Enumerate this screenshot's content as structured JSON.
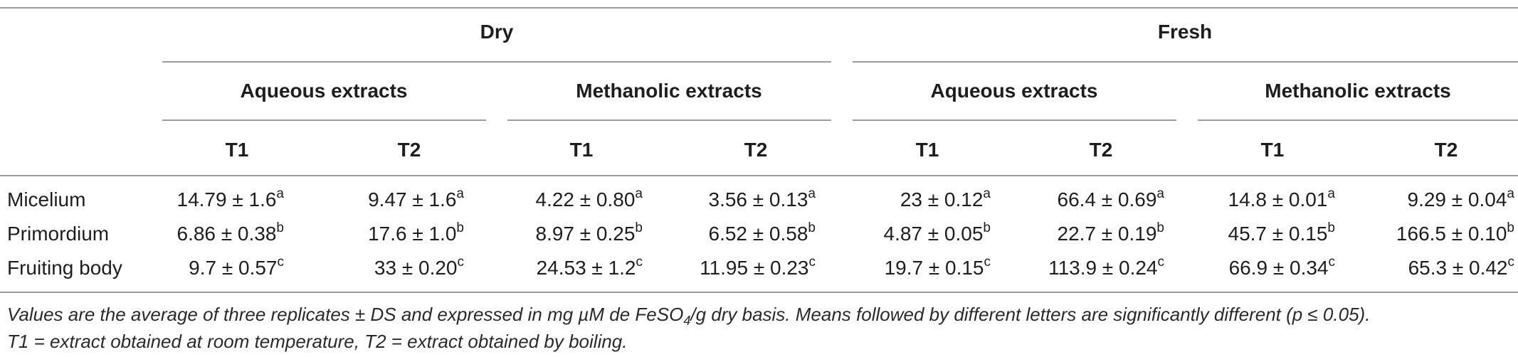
{
  "table": {
    "groups": [
      {
        "label": "Dry",
        "sub": [
          {
            "label": "Aqueous extracts",
            "cols": [
              "T1",
              "T2"
            ]
          },
          {
            "label": "Methanolic extracts",
            "cols": [
              "T1",
              "T2"
            ]
          }
        ]
      },
      {
        "label": "Fresh",
        "sub": [
          {
            "label": "Aqueous extracts",
            "cols": [
              "T1",
              "T2"
            ]
          },
          {
            "label": "Methanolic extracts",
            "cols": [
              "T1",
              "T2"
            ]
          }
        ]
      }
    ],
    "rows": [
      {
        "label": "Micelium",
        "cells": [
          {
            "v": "14.79 ± 1.6",
            "s": "a"
          },
          {
            "v": "9.47 ± 1.6",
            "s": "a"
          },
          {
            "v": "4.22 ± 0.80",
            "s": "a"
          },
          {
            "v": "3.56 ± 0.13",
            "s": "a"
          },
          {
            "v": "23 ± 0.12",
            "s": "a"
          },
          {
            "v": "66.4 ± 0.69",
            "s": "a"
          },
          {
            "v": "14.8 ± 0.01",
            "s": "a"
          },
          {
            "v": "9.29 ± 0.04",
            "s": "a"
          }
        ]
      },
      {
        "label": "Primordium",
        "cells": [
          {
            "v": "6.86 ± 0.38",
            "s": "b"
          },
          {
            "v": "17.6 ± 1.0",
            "s": "b"
          },
          {
            "v": "8.97 ± 0.25",
            "s": "b"
          },
          {
            "v": "6.52 ± 0.58",
            "s": "b"
          },
          {
            "v": "4.87 ± 0.05",
            "s": "b"
          },
          {
            "v": "22.7 ± 0.19",
            "s": "b"
          },
          {
            "v": "45.7 ± 0.15",
            "s": "b"
          },
          {
            "v": "166.5 ± 0.10",
            "s": "b"
          }
        ]
      },
      {
        "label": "Fruiting body",
        "cells": [
          {
            "v": "9.7 ± 0.57",
            "s": "c"
          },
          {
            "v": "33 ± 0.20",
            "s": "c"
          },
          {
            "v": "24.53 ± 1.2",
            "s": "c"
          },
          {
            "v": "11.95 ± 0.23",
            "s": "c"
          },
          {
            "v": "19.7 ± 0.15",
            "s": "c"
          },
          {
            "v": "113.9 ± 0.24",
            "s": "c"
          },
          {
            "v": "66.9 ± 0.34",
            "s": "c"
          },
          {
            "v": "65.3 ± 0.42",
            "s": "c"
          }
        ]
      }
    ]
  },
  "footnote": {
    "line1_a": "Values are the average of three replicates ± DS and expressed in mg µM de FeSO",
    "line1_sub": "4",
    "line1_b": "/g dry basis. Means followed by different letters are significantly different (p ≤ 0.05).",
    "line2": "T1 = extract obtained at room temperature, T2 = extract obtained by boiling."
  }
}
